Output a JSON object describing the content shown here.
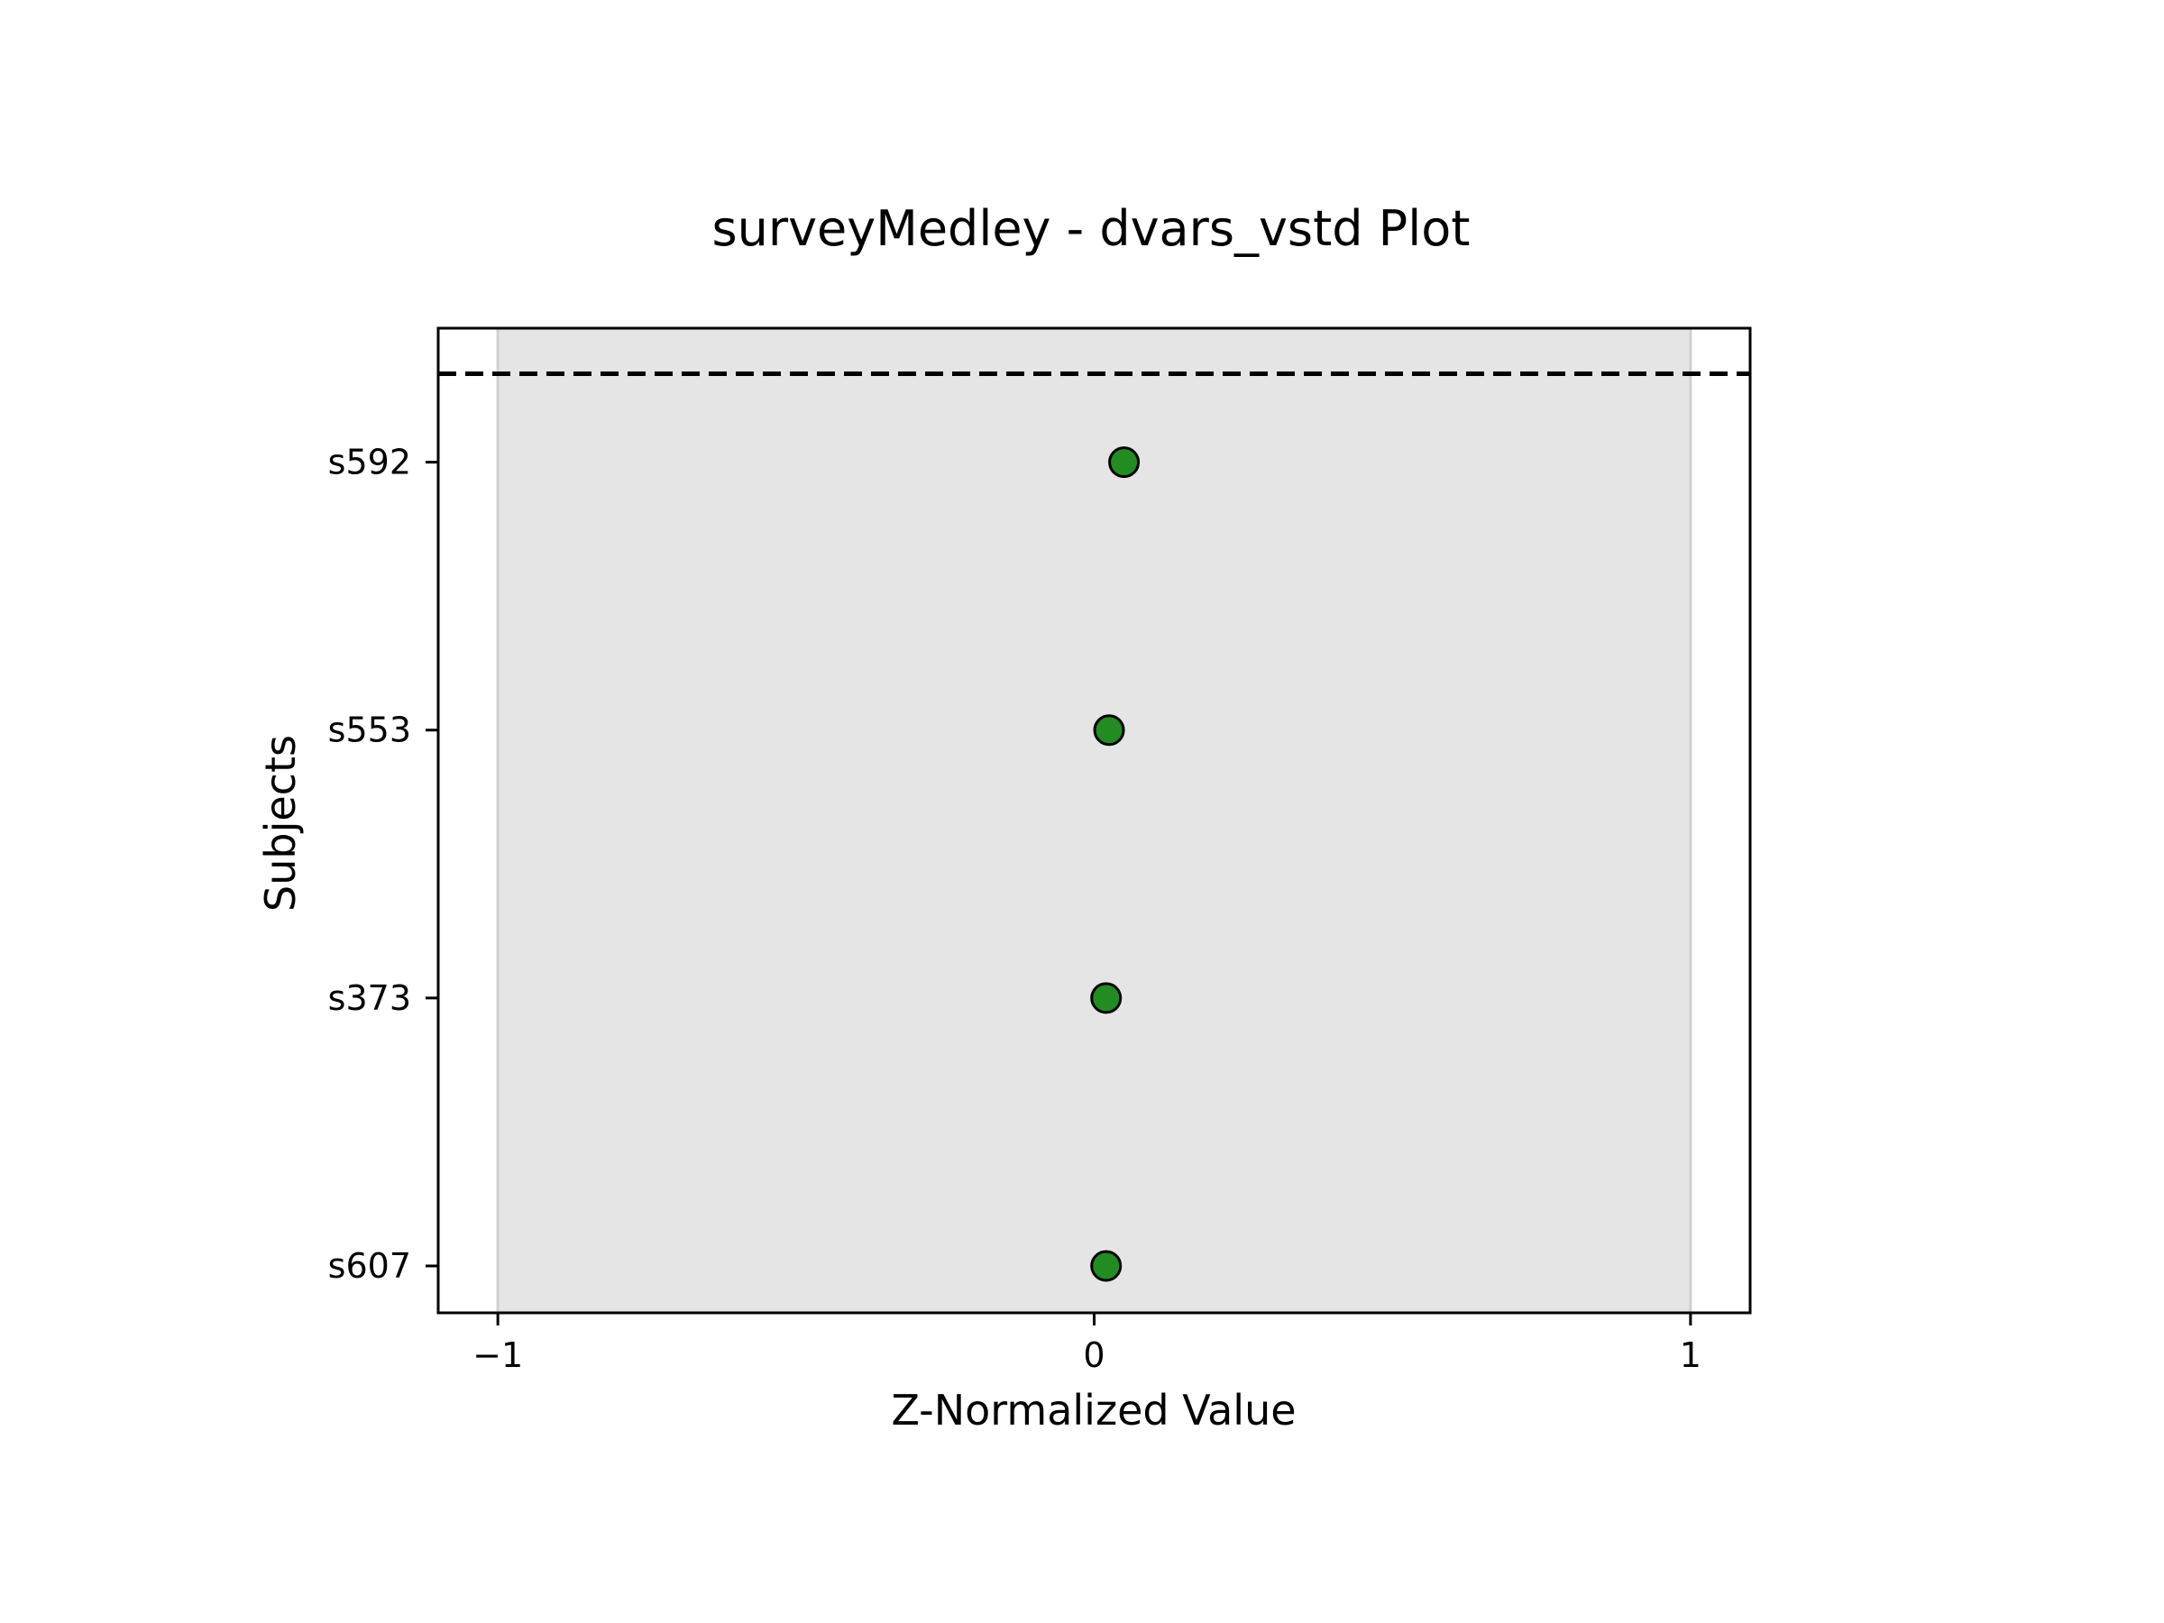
{
  "chart_data": {
    "type": "scatter",
    "title": "surveyMedley - dvars_vstd Plot",
    "xlabel": "Z-Normalized Value",
    "ylabel": "Subjects",
    "xlim": [
      -1.1,
      1.1
    ],
    "xticks": [
      -1,
      0,
      1
    ],
    "xtick_labels": [
      "−1",
      "0",
      "1"
    ],
    "categories": [
      "s607",
      "s373",
      "s553",
      "s592"
    ],
    "values": [
      0.02,
      0.02,
      0.025,
      0.05
    ],
    "shaded_band": {
      "from": -1,
      "to": 1,
      "color": "#e5e5e5"
    },
    "threshold_line": {
      "style": "dashed",
      "color": "#000000",
      "position": "above top category"
    },
    "marker_color": "#228b22",
    "marker_edge_color": "#000000",
    "grid": false,
    "legend": "none"
  }
}
